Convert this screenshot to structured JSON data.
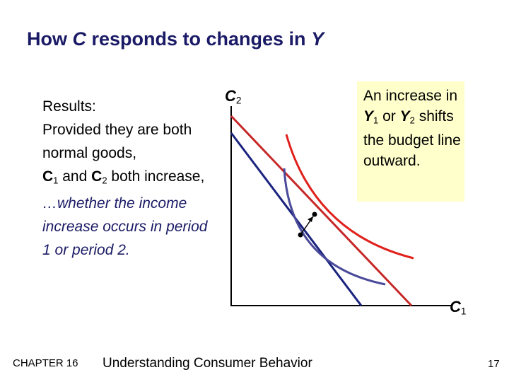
{
  "title": {
    "pre": "How ",
    "var1": "C",
    "mid": "  responds to changes in ",
    "var2": "Y"
  },
  "results": {
    "line1": "Results:",
    "line2": "Provided they are both normal goods,",
    "c": "C",
    "sub1": "1",
    "and": " and ",
    "c2": "C",
    "sub2": "2",
    "tail": " both increase,",
    "blue": "…whether the income increase occurs in period 1 or period 2."
  },
  "axis": {
    "y_var": "C",
    "y_sub": "2",
    "x_var": "C",
    "x_sub": "1"
  },
  "callout": {
    "t1": "An increase in ",
    "y1": "Y",
    "s1": "1",
    "t2": " or ",
    "y2": "Y",
    "s2": "2",
    "t3": " shifts the budget line outward."
  },
  "footer": {
    "chapter": "CHAPTER 16",
    "book": "Understanding Consumer Behavior",
    "page": "17"
  },
  "colors": {
    "title": "#1a1a66",
    "budget_old": "#1a237e",
    "budget_new": "#c62828",
    "curve_old": "#4a4a9a",
    "curve_new": "#e0201b",
    "callout_bg": "#ffffcc"
  }
}
